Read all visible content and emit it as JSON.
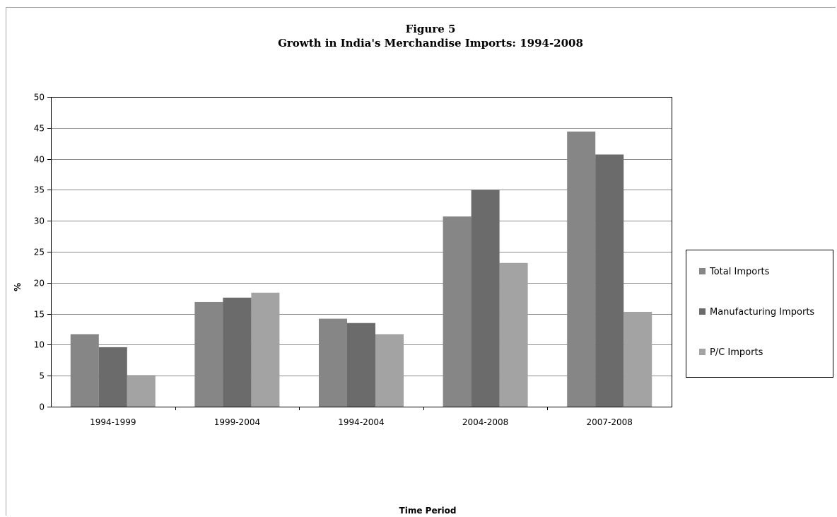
{
  "chart_data": {
    "type": "bar",
    "title_line1": "Figure 5",
    "title_line2": "Growth in India's Merchandise Imports: 1994-2008",
    "xlabel": "Time Period",
    "ylabel": "%",
    "ylim": [
      0,
      50
    ],
    "yticks": [
      0,
      5,
      10,
      15,
      20,
      25,
      30,
      35,
      40,
      45,
      50
    ],
    "grid": true,
    "legend_position": "right",
    "categories": [
      "1994-1999",
      "1999-2004",
      "1994-2004",
      "2004-2008",
      "2007-2008"
    ],
    "series": [
      {
        "name": "Total Imports",
        "color": "#868686",
        "values": [
          11.7,
          16.9,
          14.2,
          30.7,
          44.4
        ]
      },
      {
        "name": "Manufacturing Imports",
        "color": "#6b6b6b",
        "values": [
          9.6,
          17.6,
          13.5,
          35.0,
          40.7
        ]
      },
      {
        "name": "P/C Imports",
        "color": "#a3a3a3",
        "values": [
          5.1,
          18.4,
          11.7,
          23.2,
          15.3
        ]
      }
    ]
  }
}
